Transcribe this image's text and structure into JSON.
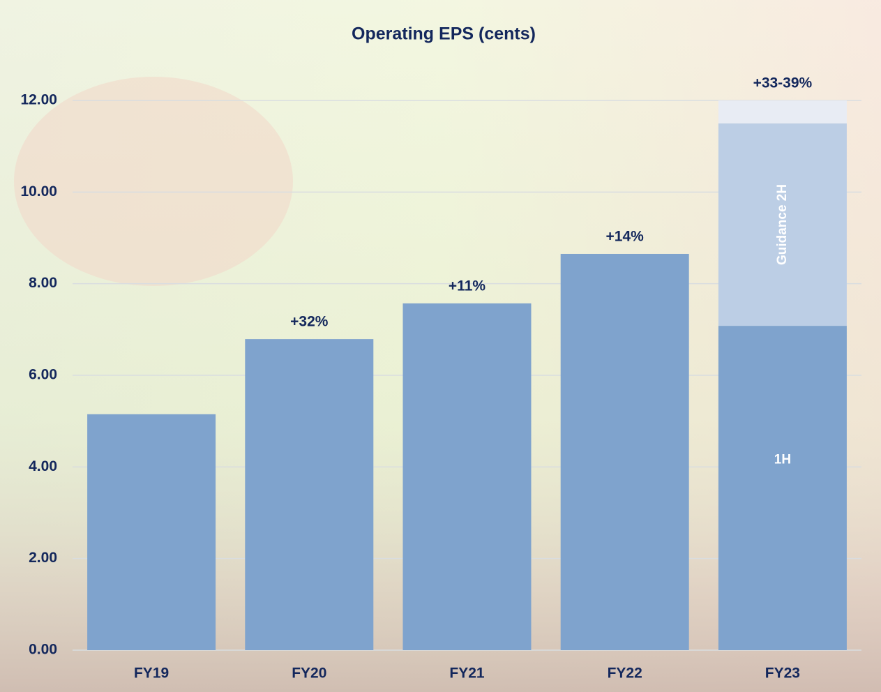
{
  "chart_data": {
    "type": "stacked_bar",
    "title": "Operating EPS (cents)",
    "categories": [
      "FY19",
      "FY20",
      "FY21",
      "FY22",
      "FY23"
    ],
    "series": [
      {
        "name": "1H",
        "color": "#7fa3cd",
        "values": [
          5.15,
          6.79,
          7.57,
          8.65,
          7.08
        ]
      },
      {
        "name": "Guidance 2H",
        "color": "#bccee5",
        "values": [
          null,
          null,
          null,
          null,
          4.42
        ]
      },
      {
        "color": "#e8ecf4",
        "values": [
          null,
          null,
          null,
          null,
          0.5
        ]
      }
    ],
    "annotations": [
      null,
      "+32%",
      "+11%",
      "+14%",
      "+33-39%"
    ],
    "ylim": [
      0,
      12
    ],
    "yticks": [
      {
        "value": 0,
        "label": "0.00"
      },
      {
        "value": 2,
        "label": "2.00"
      },
      {
        "value": 4,
        "label": "4.00"
      },
      {
        "value": 6,
        "label": "6.00"
      },
      {
        "value": 8,
        "label": "8.00"
      },
      {
        "value": 10,
        "label": "10.00"
      },
      {
        "value": 12,
        "label": "12.00"
      }
    ],
    "grid": true
  }
}
